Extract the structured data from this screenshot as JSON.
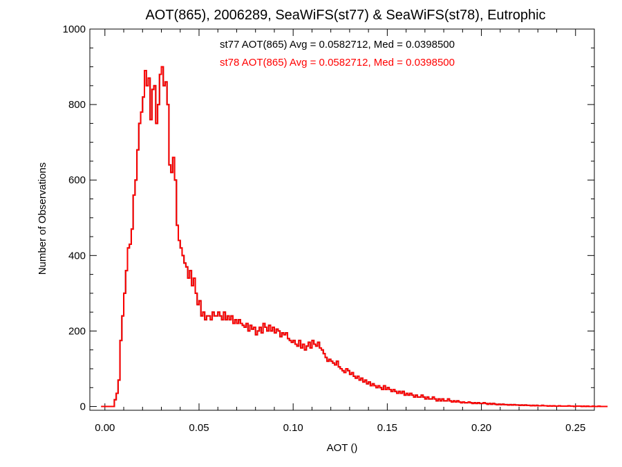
{
  "chart_data": {
    "type": "histogram",
    "title": "AOT(865), 2006289, SeaWiFS(st77) & SeaWiFS(st78), Eutrophic",
    "xlabel": "AOT ()",
    "ylabel": "Number of Observations",
    "xlim": [
      -0.008,
      0.26
    ],
    "ylim": [
      -10,
      1000
    ],
    "x_ticks": [
      0.0,
      0.05,
      0.1,
      0.15,
      0.2,
      0.25
    ],
    "x_tick_labels": [
      "0.00",
      "0.05",
      "0.10",
      "0.15",
      "0.20",
      "0.25"
    ],
    "y_ticks": [
      0,
      200,
      400,
      600,
      800,
      1000
    ],
    "y_tick_labels": [
      "0",
      "200",
      "400",
      "600",
      "800",
      "1000"
    ],
    "grid": false,
    "bin_start": -0.002,
    "bin_width": 0.001,
    "annotations": [
      {
        "text": "st77 AOT(865) Avg = 0.0582712, Med = 0.0398500",
        "color": "#000000"
      },
      {
        "text": "st78 AOT(865) Avg = 0.0582712, Med = 0.0398500",
        "color": "#ff0000"
      }
    ],
    "series": [
      {
        "name": "st77",
        "color": "#000000",
        "values": [
          0,
          0,
          0,
          0,
          0,
          0,
          0,
          18,
          35,
          70,
          175,
          240,
          300,
          360,
          420,
          430,
          470,
          560,
          600,
          680,
          750,
          780,
          820,
          890,
          850,
          870,
          760,
          840,
          850,
          750,
          800,
          880,
          900,
          850,
          860,
          800,
          640,
          620,
          660,
          600,
          480,
          440,
          420,
          400,
          380,
          370,
          340,
          360,
          320,
          340,
          300,
          270,
          280,
          240,
          250,
          230,
          240,
          240,
          230,
          250,
          240,
          240,
          250,
          240,
          230,
          250,
          230,
          240,
          230,
          240,
          220,
          230,
          220,
          230,
          220,
          215,
          210,
          220,
          200,
          215,
          205,
          210,
          190,
          200,
          210,
          195,
          220,
          210,
          200,
          215,
          200,
          210,
          195,
          205,
          200,
          185,
          195,
          190,
          195,
          180,
          175,
          170,
          175,
          165,
          160,
          175,
          155,
          165,
          150,
          160,
          170,
          155,
          175,
          165,
          160,
          170,
          155,
          150,
          140,
          130,
          120,
          125,
          120,
          115,
          110,
          120,
          105,
          100,
          95,
          90,
          100,
          95,
          85,
          90,
          80,
          75,
          80,
          70,
          75,
          65,
          70,
          60,
          65,
          55,
          60,
          55,
          50,
          55,
          50,
          45,
          55,
          45,
          50,
          45,
          40,
          45,
          40,
          35,
          40,
          35,
          40,
          30,
          35,
          30,
          35,
          30,
          25,
          30,
          25,
          25,
          30,
          25,
          20,
          25,
          20,
          20,
          25,
          20,
          15,
          20,
          15,
          20,
          15,
          15,
          20,
          15,
          12,
          15,
          12,
          15,
          12,
          10,
          12,
          10,
          10,
          12,
          10,
          8,
          10,
          8,
          10,
          8,
          8,
          10,
          8,
          6,
          8,
          6,
          8,
          6,
          5,
          6,
          5,
          6,
          5,
          5,
          4,
          5,
          4,
          5,
          4,
          4,
          3,
          4,
          3,
          4,
          3,
          3,
          2,
          3,
          2,
          3,
          2,
          2,
          3,
          2,
          2,
          1,
          2,
          1,
          2,
          1,
          1,
          2,
          1,
          1,
          1,
          1,
          2,
          1,
          1,
          0,
          1,
          1,
          1,
          0,
          1,
          0,
          1,
          0,
          0,
          1,
          0,
          0,
          1,
          0,
          0,
          0,
          0
        ]
      },
      {
        "name": "st78",
        "color": "#ff0000",
        "values": [
          0,
          0,
          0,
          0,
          0,
          0,
          0,
          18,
          35,
          70,
          175,
          240,
          300,
          360,
          420,
          430,
          470,
          560,
          600,
          680,
          750,
          780,
          820,
          890,
          850,
          870,
          760,
          840,
          850,
          750,
          800,
          880,
          900,
          850,
          860,
          800,
          640,
          620,
          660,
          600,
          480,
          440,
          420,
          400,
          380,
          370,
          340,
          360,
          320,
          340,
          300,
          270,
          280,
          240,
          250,
          230,
          240,
          240,
          230,
          250,
          240,
          240,
          250,
          240,
          230,
          250,
          230,
          240,
          230,
          240,
          220,
          230,
          220,
          230,
          220,
          215,
          210,
          220,
          200,
          215,
          205,
          210,
          190,
          200,
          210,
          195,
          220,
          210,
          200,
          215,
          200,
          210,
          195,
          205,
          200,
          185,
          195,
          190,
          195,
          180,
          175,
          170,
          175,
          165,
          160,
          175,
          155,
          165,
          150,
          160,
          170,
          155,
          175,
          165,
          160,
          170,
          155,
          150,
          140,
          130,
          120,
          125,
          120,
          115,
          110,
          120,
          105,
          100,
          95,
          90,
          100,
          95,
          85,
          90,
          80,
          75,
          80,
          70,
          75,
          65,
          70,
          60,
          65,
          55,
          60,
          55,
          50,
          55,
          50,
          45,
          55,
          45,
          50,
          45,
          40,
          45,
          40,
          35,
          40,
          35,
          40,
          30,
          35,
          30,
          35,
          30,
          25,
          30,
          25,
          25,
          30,
          25,
          20,
          25,
          20,
          20,
          25,
          20,
          15,
          20,
          15,
          20,
          15,
          15,
          20,
          15,
          12,
          15,
          12,
          15,
          12,
          10,
          12,
          10,
          10,
          12,
          10,
          8,
          10,
          8,
          10,
          8,
          8,
          10,
          8,
          6,
          8,
          6,
          8,
          6,
          5,
          6,
          5,
          6,
          5,
          5,
          4,
          5,
          4,
          5,
          4,
          4,
          3,
          4,
          3,
          4,
          3,
          3,
          2,
          3,
          2,
          3,
          2,
          2,
          3,
          2,
          2,
          1,
          2,
          1,
          2,
          1,
          1,
          2,
          1,
          1,
          1,
          1,
          2,
          1,
          1,
          0,
          1,
          1,
          1,
          0,
          1,
          0,
          1,
          0,
          0,
          1,
          0,
          0,
          1,
          0,
          0,
          0,
          0
        ]
      }
    ]
  }
}
